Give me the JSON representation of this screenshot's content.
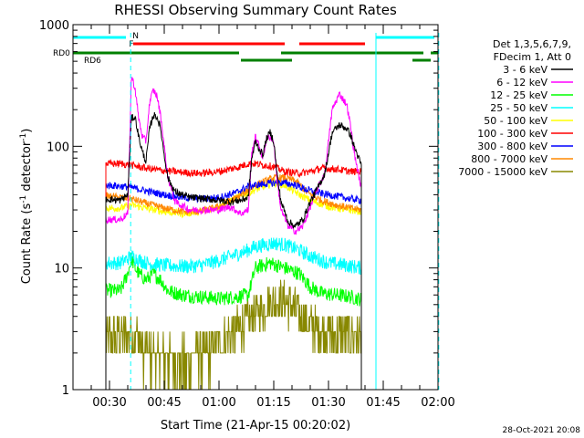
{
  "chart_data": {
    "type": "line",
    "title": "RHESSI Observing Summary Count Rates",
    "ylabel_main": "Count Rate (s",
    "ylabel_sup": "-1",
    "ylabel_mid": " detector",
    "ylabel_sup2": "-1",
    "ylabel_end": ")",
    "xlabel": "Start Time (21-Apr-15 00:20:02)",
    "footer": "28-Oct-2021 20:08",
    "x_range_min": [
      20,
      120
    ],
    "y_range_log": [
      1,
      1000
    ],
    "y_ticks": [
      {
        "value": 1,
        "label": "1"
      },
      {
        "value": 10,
        "label": "10"
      },
      {
        "value": 100,
        "label": "100"
      },
      {
        "value": 1000,
        "label": "1000"
      }
    ],
    "x_ticks": [
      {
        "value": 30,
        "label": "00:30"
      },
      {
        "value": 45,
        "label": "00:45"
      },
      {
        "value": 60,
        "label": "01:00"
      },
      {
        "value": 75,
        "label": "01:15"
      },
      {
        "value": 90,
        "label": "01:30"
      },
      {
        "value": 105,
        "label": "01:45"
      },
      {
        "value": 120,
        "label": "02:00"
      }
    ],
    "legend_header": [
      "Det 1,3,5,6,7,9,",
      "FDecim 1, Att 0"
    ],
    "series": [
      {
        "name": "3 - 6 keV",
        "color": "#000000",
        "points": [
          [
            29,
            37
          ],
          [
            33,
            36
          ],
          [
            35,
            40
          ],
          [
            36,
            170
          ],
          [
            37,
            175
          ],
          [
            38,
            120
          ],
          [
            39,
            90
          ],
          [
            40,
            75
          ],
          [
            41,
            140
          ],
          [
            42,
            180
          ],
          [
            43,
            175
          ],
          [
            44,
            140
          ],
          [
            45,
            85
          ],
          [
            46,
            55
          ],
          [
            48,
            42
          ],
          [
            52,
            38
          ],
          [
            56,
            37
          ],
          [
            60,
            36
          ],
          [
            63,
            35
          ],
          [
            66,
            36
          ],
          [
            68,
            38
          ],
          [
            69,
            80
          ],
          [
            70,
            110
          ],
          [
            71,
            95
          ],
          [
            72,
            85
          ],
          [
            73,
            115
          ],
          [
            74,
            130
          ],
          [
            75,
            110
          ],
          [
            76,
            55
          ],
          [
            77,
            35
          ],
          [
            79,
            24
          ],
          [
            81,
            22
          ],
          [
            83,
            25
          ],
          [
            85,
            35
          ],
          [
            87,
            45
          ],
          [
            89,
            60
          ],
          [
            91,
            130
          ],
          [
            93,
            150
          ],
          [
            95,
            140
          ],
          [
            96,
            125
          ],
          [
            97,
            100
          ],
          [
            99,
            70
          ]
        ]
      },
      {
        "name": "6 - 12 keV",
        "color": "#ff00ff",
        "points": [
          [
            29,
            25
          ],
          [
            33,
            25
          ],
          [
            35,
            28
          ],
          [
            36,
            380
          ],
          [
            37,
            300
          ],
          [
            38,
            170
          ],
          [
            39,
            120
          ],
          [
            40,
            110
          ],
          [
            41,
            230
          ],
          [
            42,
            290
          ],
          [
            43,
            260
          ],
          [
            44,
            180
          ],
          [
            45,
            100
          ],
          [
            46,
            55
          ],
          [
            48,
            35
          ],
          [
            52,
            30
          ],
          [
            56,
            30
          ],
          [
            60,
            30
          ],
          [
            63,
            32
          ],
          [
            66,
            28
          ],
          [
            68,
            30
          ],
          [
            69,
            90
          ],
          [
            70,
            120
          ],
          [
            71,
            100
          ],
          [
            72,
            80
          ],
          [
            73,
            115
          ],
          [
            74,
            120
          ],
          [
            75,
            110
          ],
          [
            76,
            50
          ],
          [
            77,
            30
          ],
          [
            79,
            22
          ],
          [
            81,
            20
          ],
          [
            83,
            22
          ],
          [
            85,
            32
          ],
          [
            87,
            45
          ],
          [
            89,
            60
          ],
          [
            91,
            200
          ],
          [
            93,
            270
          ],
          [
            95,
            220
          ],
          [
            96,
            150
          ],
          [
            97,
            90
          ],
          [
            99,
            45
          ]
        ]
      },
      {
        "name": "12 - 25 keV",
        "color": "#00ff00",
        "points": [
          [
            29,
            6.5
          ],
          [
            33,
            6.5
          ],
          [
            35,
            9
          ],
          [
            36,
            12
          ],
          [
            37,
            10
          ],
          [
            38,
            9
          ],
          [
            40,
            8
          ],
          [
            42,
            9
          ],
          [
            44,
            8
          ],
          [
            46,
            6.5
          ],
          [
            50,
            6
          ],
          [
            55,
            5.8
          ],
          [
            60,
            5.6
          ],
          [
            65,
            5.8
          ],
          [
            68,
            6
          ],
          [
            70,
            10
          ],
          [
            74,
            11
          ],
          [
            78,
            10
          ],
          [
            82,
            9
          ],
          [
            85,
            7
          ],
          [
            88,
            6.2
          ],
          [
            92,
            6
          ],
          [
            96,
            5.8
          ],
          [
            99,
            5.5
          ]
        ]
      },
      {
        "name": "25 - 50 keV",
        "color": "#00ffff",
        "points": [
          [
            29,
            11
          ],
          [
            33,
            11
          ],
          [
            36,
            12.5
          ],
          [
            40,
            11
          ],
          [
            45,
            10.5
          ],
          [
            50,
            10.3
          ],
          [
            55,
            10.5
          ],
          [
            60,
            11.5
          ],
          [
            65,
            13
          ],
          [
            68,
            14
          ],
          [
            70,
            15
          ],
          [
            75,
            16
          ],
          [
            78,
            15.5
          ],
          [
            82,
            14
          ],
          [
            85,
            12.5
          ],
          [
            90,
            11
          ],
          [
            95,
            10.5
          ],
          [
            99,
            10
          ]
        ]
      },
      {
        "name": "50 - 100 keV",
        "color": "#ffff00",
        "points": [
          [
            29,
            31
          ],
          [
            33,
            31
          ],
          [
            36,
            33
          ],
          [
            40,
            31
          ],
          [
            45,
            29
          ],
          [
            50,
            28
          ],
          [
            55,
            29
          ],
          [
            60,
            32
          ],
          [
            65,
            38
          ],
          [
            70,
            44
          ],
          [
            75,
            50
          ],
          [
            78,
            48
          ],
          [
            82,
            40
          ],
          [
            85,
            36
          ],
          [
            90,
            32
          ],
          [
            95,
            30
          ],
          [
            99,
            29
          ]
        ]
      },
      {
        "name": "100 - 300 keV",
        "color": "#ff0000",
        "points": [
          [
            29,
            72
          ],
          [
            33,
            72
          ],
          [
            36,
            70
          ],
          [
            40,
            66
          ],
          [
            45,
            63
          ],
          [
            50,
            61
          ],
          [
            55,
            60
          ],
          [
            60,
            62
          ],
          [
            65,
            67
          ],
          [
            68,
            72
          ],
          [
            70,
            72
          ],
          [
            75,
            68
          ],
          [
            78,
            62
          ],
          [
            82,
            60
          ],
          [
            85,
            62
          ],
          [
            88,
            66
          ],
          [
            92,
            65
          ],
          [
            96,
            62
          ],
          [
            99,
            62
          ]
        ]
      },
      {
        "name": "300 - 800 keV",
        "color": "#0000ff",
        "points": [
          [
            29,
            48
          ],
          [
            33,
            47
          ],
          [
            36,
            46
          ],
          [
            40,
            43
          ],
          [
            45,
            40
          ],
          [
            50,
            38
          ],
          [
            55,
            37
          ],
          [
            60,
            38
          ],
          [
            65,
            42
          ],
          [
            68,
            47
          ],
          [
            70,
            48
          ],
          [
            75,
            50
          ],
          [
            78,
            50
          ],
          [
            81,
            48
          ],
          [
            84,
            44
          ],
          [
            88,
            41
          ],
          [
            92,
            39
          ],
          [
            96,
            37
          ],
          [
            99,
            36
          ]
        ]
      },
      {
        "name": "800 - 7000 keV",
        "color": "#ff8800",
        "points": [
          [
            29,
            39
          ],
          [
            33,
            38
          ],
          [
            36,
            37
          ],
          [
            40,
            34
          ],
          [
            45,
            31
          ],
          [
            50,
            29
          ],
          [
            55,
            29
          ],
          [
            60,
            32
          ],
          [
            65,
            38
          ],
          [
            70,
            48
          ],
          [
            75,
            55
          ],
          [
            78,
            55
          ],
          [
            81,
            52
          ],
          [
            84,
            42
          ],
          [
            88,
            36
          ],
          [
            92,
            33
          ],
          [
            96,
            31
          ],
          [
            99,
            30
          ]
        ]
      },
      {
        "name": "7000 - 15000 keV",
        "color": "#888800",
        "points": [
          [
            29,
            2.7
          ],
          [
            33,
            2.8
          ],
          [
            36,
            2.9
          ],
          [
            38,
            2.6
          ],
          [
            40,
            2
          ],
          [
            45,
            1.8
          ],
          [
            50,
            1.7
          ],
          [
            55,
            1.9
          ],
          [
            60,
            2.3
          ],
          [
            65,
            3.2
          ],
          [
            70,
            4.2
          ],
          [
            74,
            5.2
          ],
          [
            77,
            5.4
          ],
          [
            80,
            4.8
          ],
          [
            84,
            3.6
          ],
          [
            88,
            3
          ],
          [
            92,
            2.8
          ],
          [
            96,
            2.9
          ],
          [
            99,
            2.7
          ]
        ]
      }
    ],
    "status_bars": {
      "labels": {
        "rd0": "RD0",
        "rd6": "RD6",
        "flare": "F",
        "night": "N"
      },
      "night_color": "#00ffff",
      "flare_color": "#ff0000",
      "green_color": "#008000",
      "night_segments": [
        [
          20,
          34.5
        ],
        [
          103,
          119
        ]
      ],
      "flare_segments": [
        [
          36.5,
          78
        ],
        [
          82,
          100
        ]
      ],
      "green_upper_segments": [
        [
          20,
          65.5
        ],
        [
          77,
          116
        ],
        [
          118,
          120
        ]
      ],
      "green_lower_segments": [
        [
          66,
          80
        ],
        [
          113,
          118
        ]
      ]
    },
    "vlines": {
      "solid_cyan": [
        20,
        103
      ],
      "dashed_cyan": [
        35.8,
        120.2
      ]
    },
    "data_gap_start": 29.4,
    "data_end": 99.6
  }
}
